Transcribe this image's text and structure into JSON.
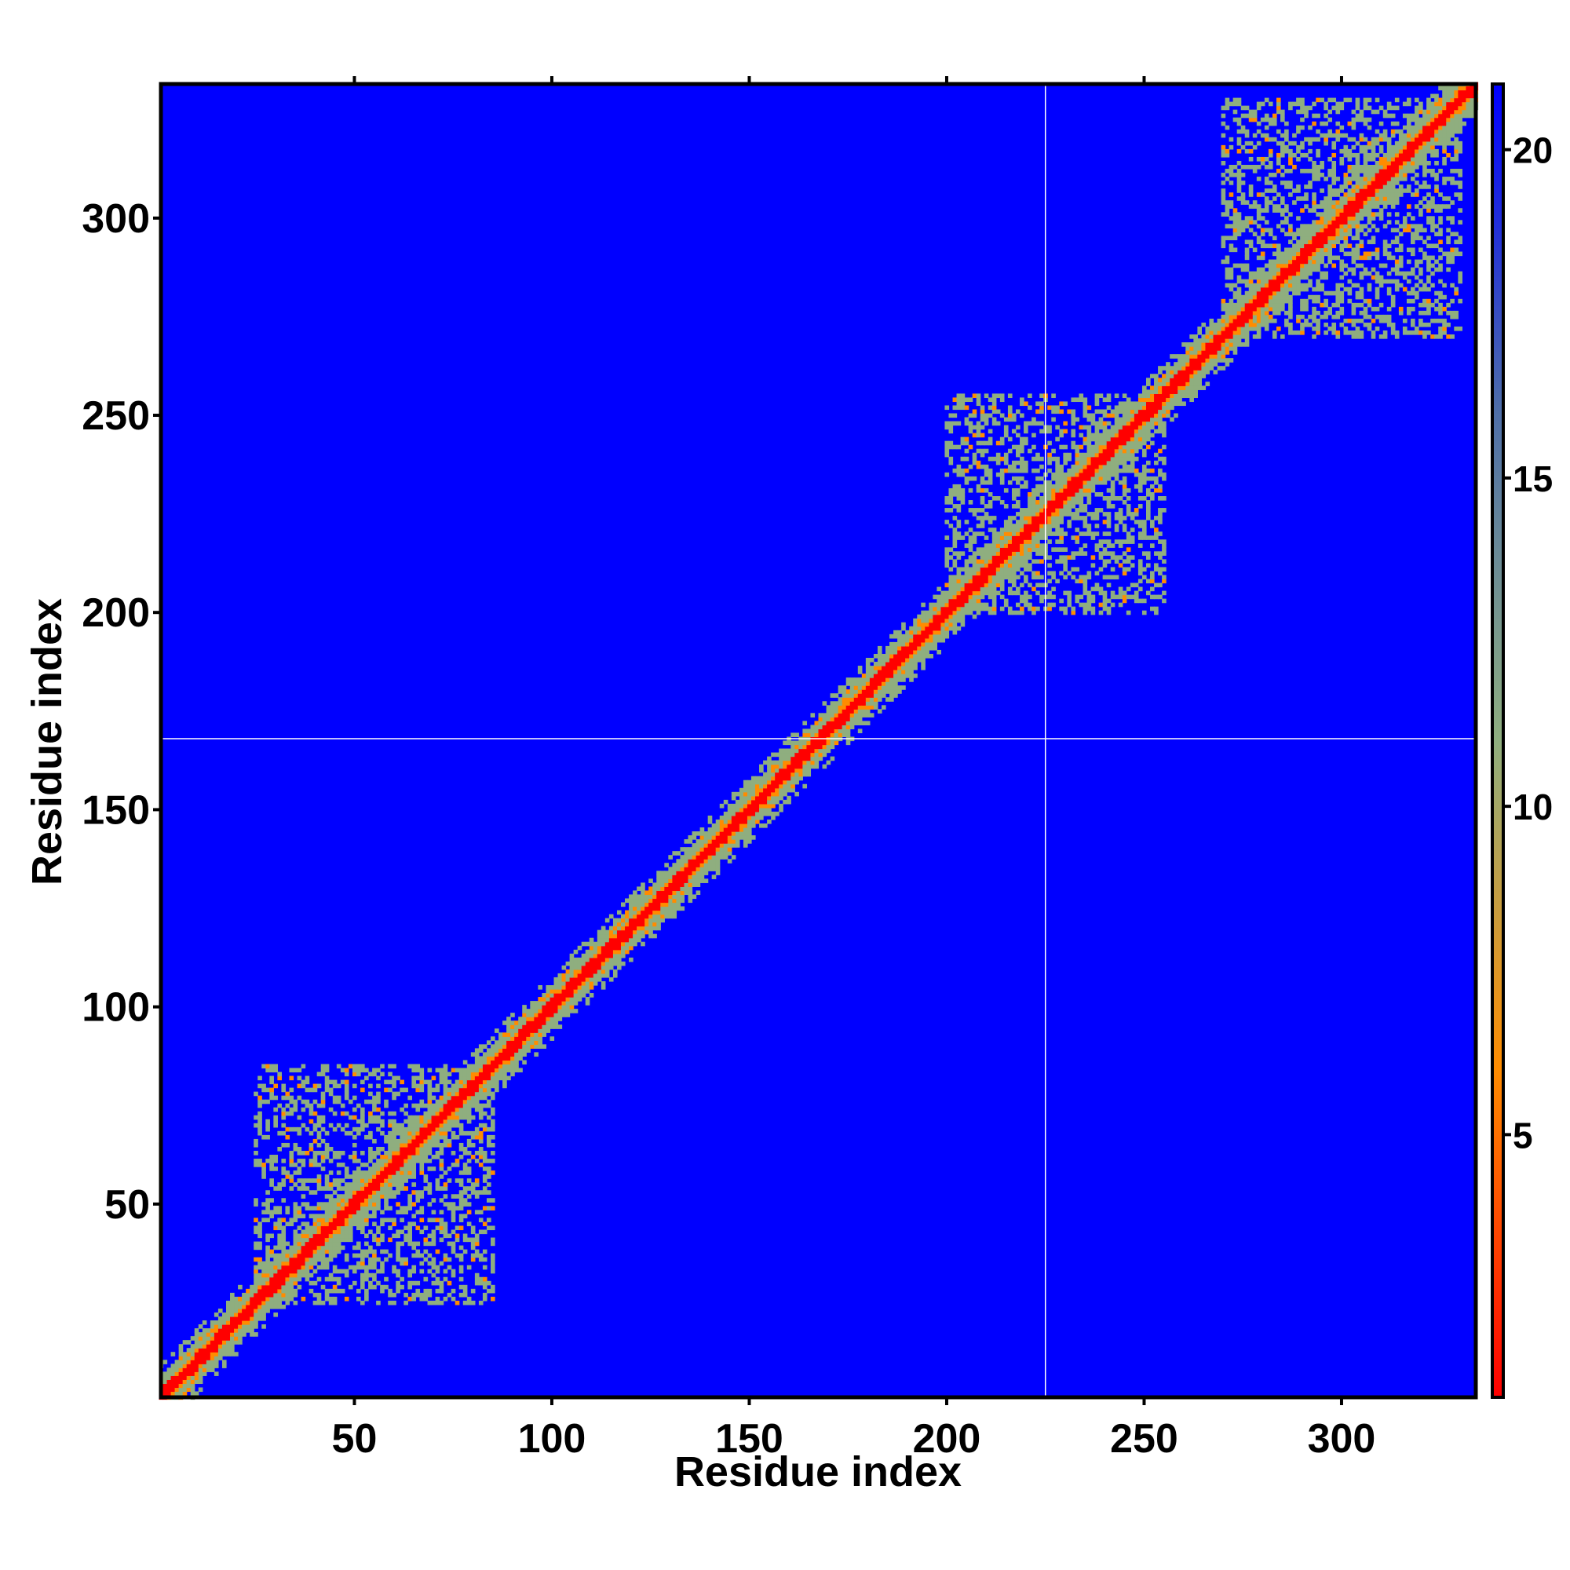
{
  "chart_data": {
    "type": "heatmap",
    "title": "",
    "xlabel": "Residue index",
    "ylabel": "Residue index",
    "xlim": [
      1,
      334
    ],
    "ylim": [
      1,
      334
    ],
    "x_ticks": [
      50,
      100,
      150,
      200,
      250,
      300
    ],
    "y_ticks": [
      50,
      100,
      150,
      200,
      250,
      300
    ],
    "n_residues": 334,
    "reference_lines": {
      "x": 225,
      "y": 168,
      "color": "#ffffff"
    },
    "colorbar": {
      "ticks": [
        5,
        10,
        15,
        20
      ],
      "range": [
        1,
        21
      ],
      "colors": [
        "#ff0000",
        "#ff8c00",
        "#8fae7f",
        "#4f6fa8",
        "#0000ff"
      ]
    },
    "contact_domains": [
      {
        "center": [
          50,
          50
        ],
        "span": [
          25,
          85
        ]
      },
      {
        "center": [
          220,
          220
        ],
        "span": [
          200,
          255
        ]
      },
      {
        "center": [
          300,
          300
        ],
        "span": [
          270,
          330
        ]
      }
    ],
    "grid": false,
    "legend": "colorbar-right"
  }
}
